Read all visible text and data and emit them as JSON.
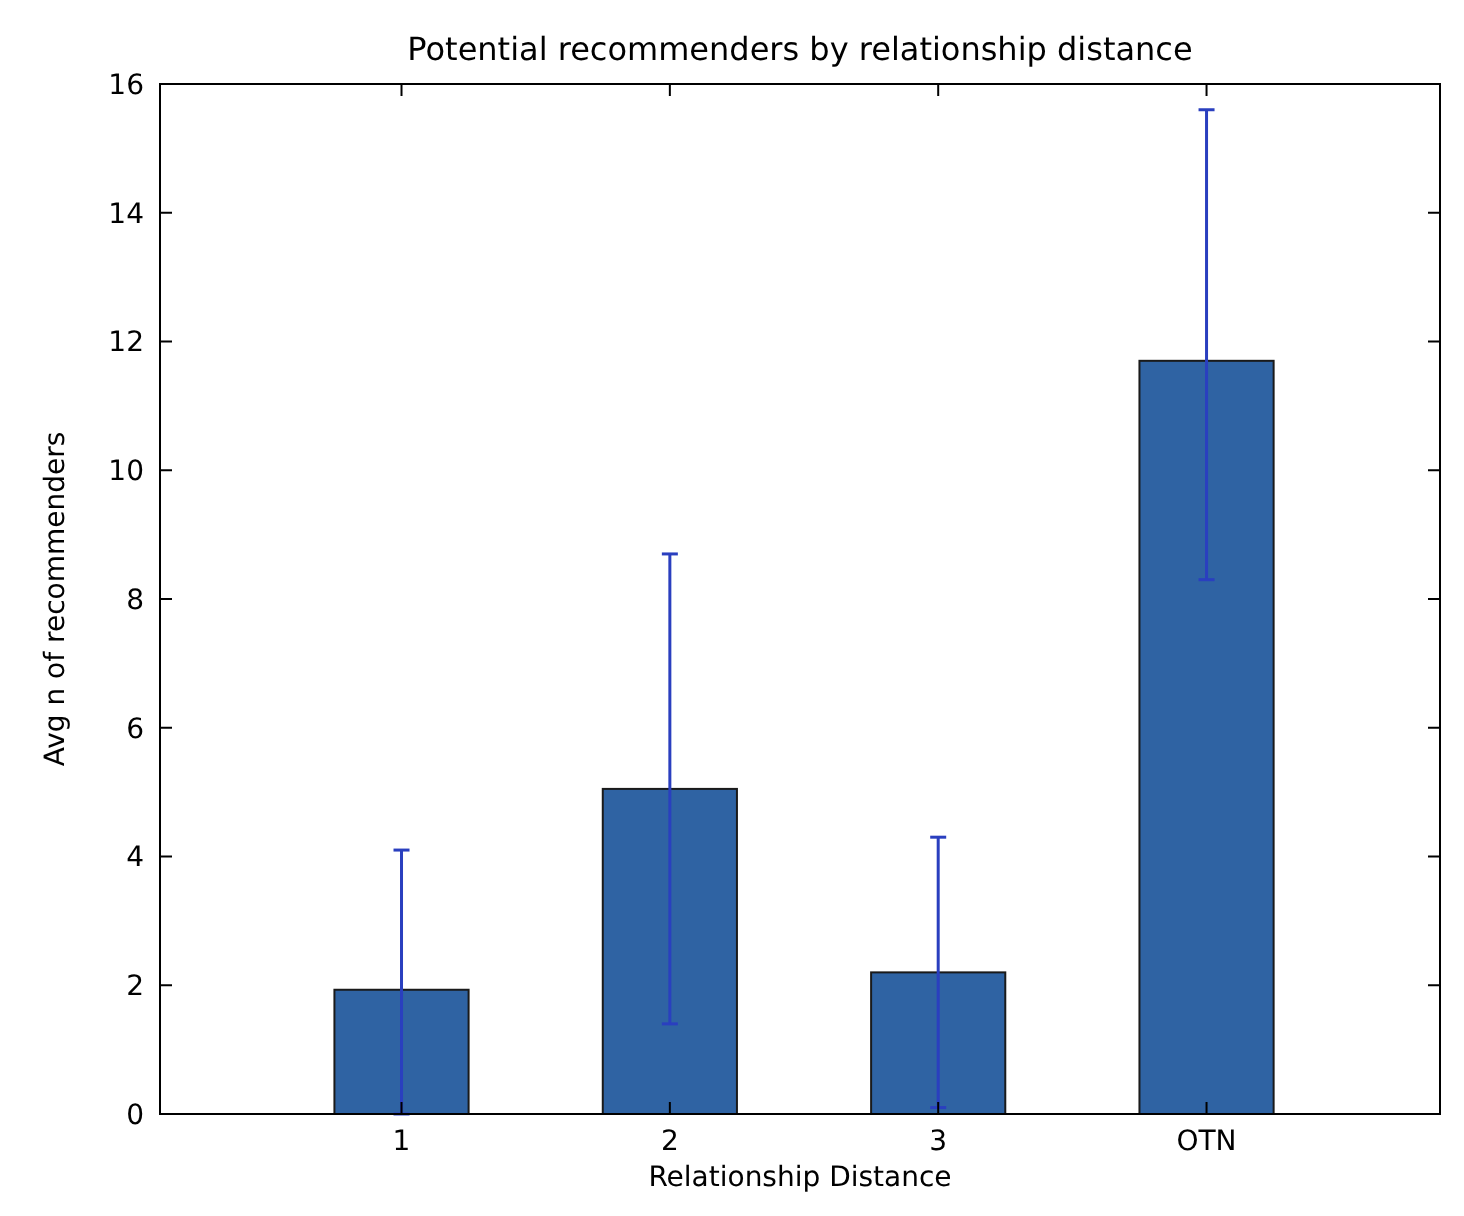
{
  "chart_data": {
    "type": "bar",
    "title": "Potential recommenders by relationship distance",
    "xlabel": "Relationship Distance",
    "ylabel": "Avg n of recommenders",
    "categories": [
      "1",
      "2",
      "3",
      "OTN"
    ],
    "values": [
      1.93,
      5.05,
      2.2,
      11.7
    ],
    "errors": [
      [
        0,
        4.1
      ],
      [
        1.4,
        8.7
      ],
      [
        0.1,
        4.3
      ],
      [
        8.3,
        15.6
      ]
    ],
    "color": "#2f63a3",
    "ylim": [
      0,
      16
    ],
    "yticks": [
      0,
      2,
      4,
      6,
      8,
      10,
      12,
      14,
      16
    ],
    "grid": false
  }
}
